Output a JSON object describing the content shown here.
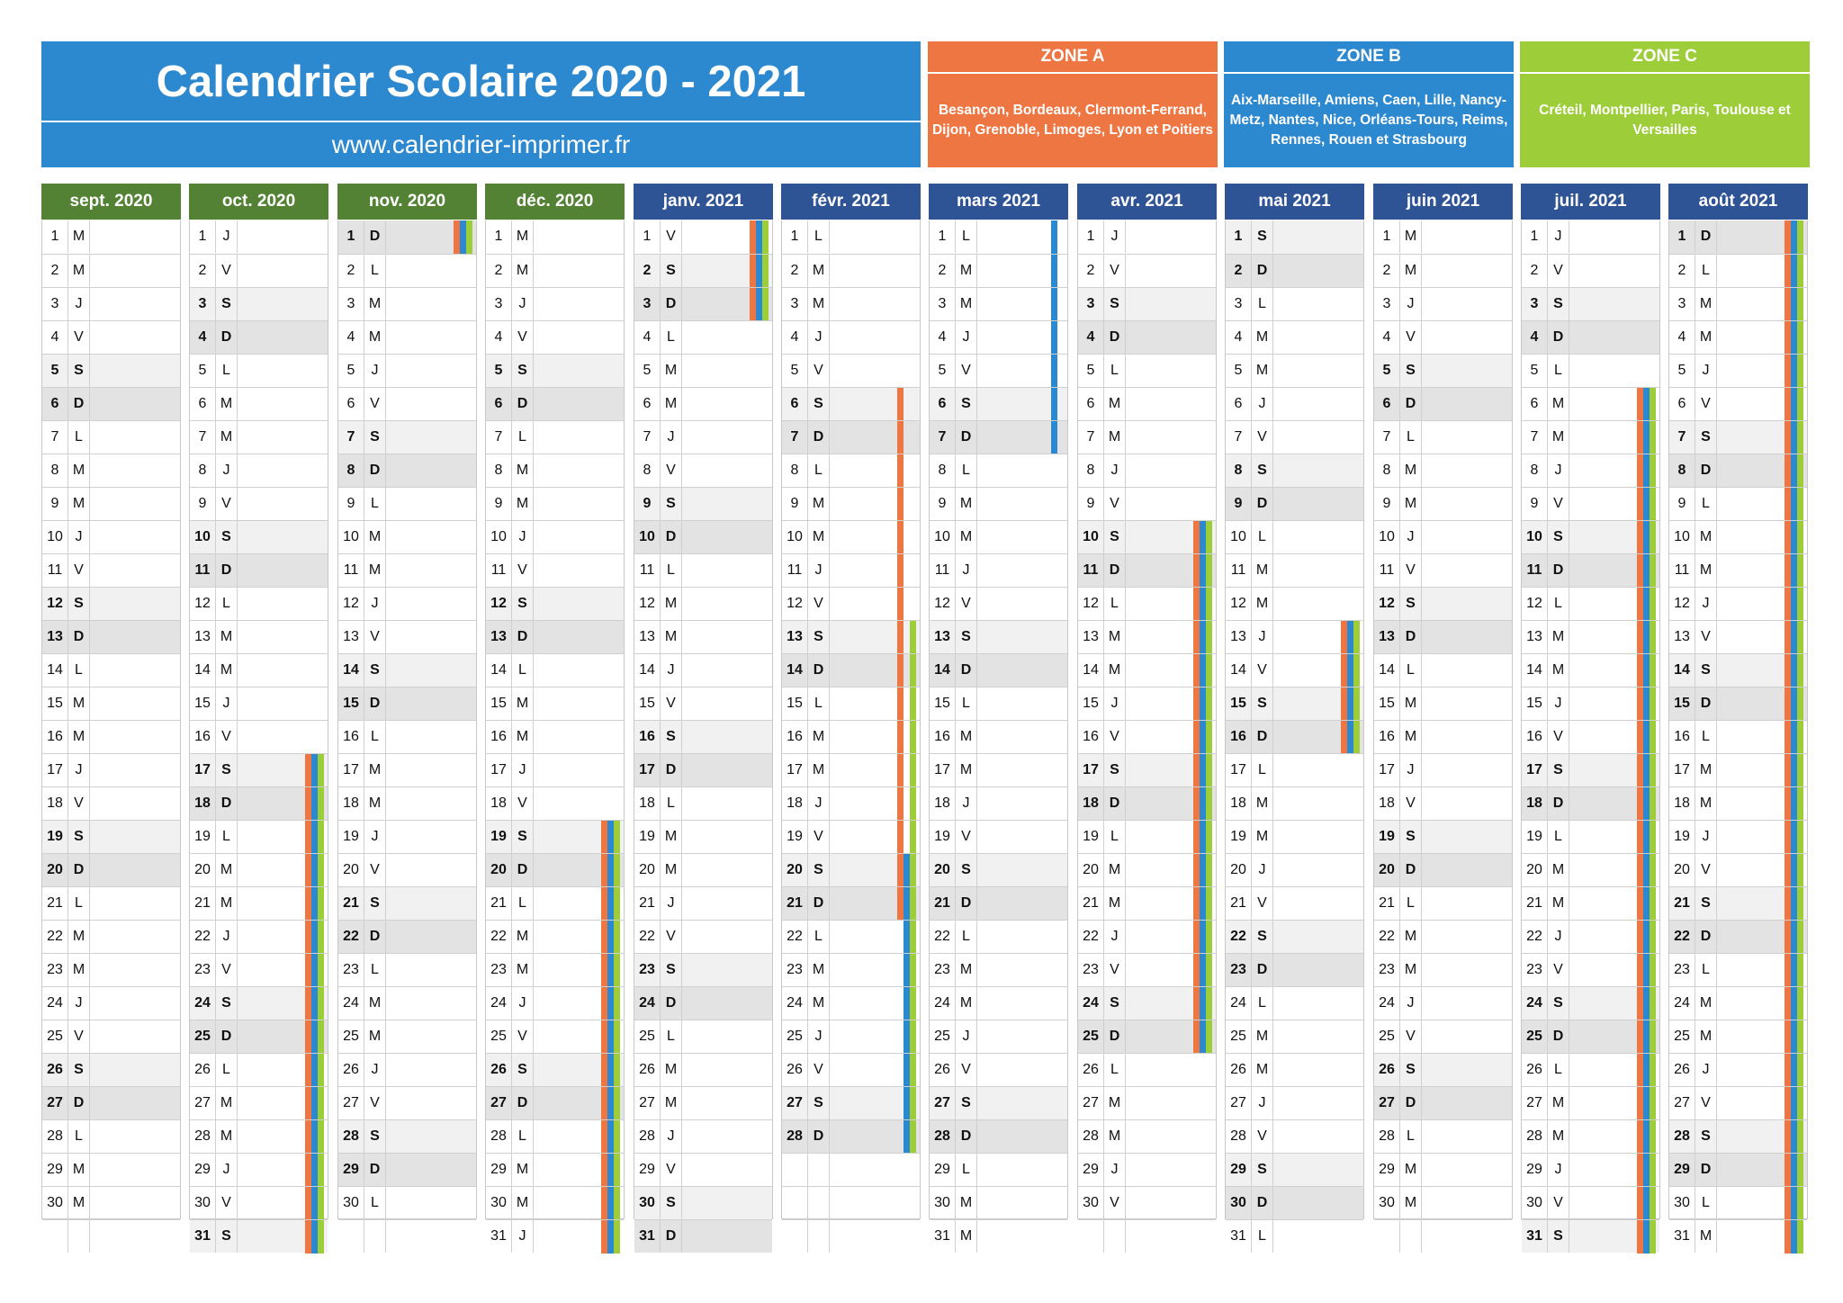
{
  "header": {
    "title": "Calendrier Scolaire 2020 - 2021",
    "url": "www.calendrier-imprimer.fr"
  },
  "zones": [
    {
      "label": "ZONE A",
      "cities": "Besançon, Bordeaux, Clermont-Ferrand, Dijon, Grenoble, Limoges, Lyon et Poitiers",
      "color": "#ee7643"
    },
    {
      "label": "ZONE B",
      "cities": "Aix-Marseille, Amiens, Caen, Lille, Nancy-Metz, Nantes, Nice, Orléans-Tours, Reims, Rennes, Rouen et Strasbourg",
      "color": "#2c88cf"
    },
    {
      "label": "ZONE C",
      "cities": "Créteil, Montpellier, Paris, Toulouse et Versailles",
      "color": "#9ecd3a"
    }
  ],
  "colors": {
    "header_blue": "#2c88cf",
    "zone_a": "#ee7643",
    "zone_b": "#2c88cf",
    "zone_c": "#9ecd3a",
    "month_green": "#548235",
    "month_navy": "#2f5496",
    "saturday_bg": "#f1f1f1",
    "sunday_bg": "#e3e3e3"
  },
  "months": [
    {
      "name": "sept. 2020",
      "header_color": "#548235",
      "days": 30,
      "first_weekday": 1,
      "vacations": {}
    },
    {
      "name": "oct. 2020",
      "header_color": "#548235",
      "days": 31,
      "first_weekday": 3,
      "vacations": {
        "a": [
          [
            17,
            31
          ]
        ],
        "b": [
          [
            17,
            31
          ]
        ],
        "c": [
          [
            17,
            31
          ]
        ]
      }
    },
    {
      "name": "nov. 2020",
      "header_color": "#548235",
      "days": 30,
      "first_weekday": 6,
      "vacations": {
        "a": [
          [
            1,
            1
          ]
        ],
        "b": [
          [
            1,
            1
          ]
        ],
        "c": [
          [
            1,
            1
          ]
        ]
      }
    },
    {
      "name": "déc. 2020",
      "header_color": "#548235",
      "days": 31,
      "first_weekday": 1,
      "vacations": {
        "a": [
          [
            19,
            31
          ]
        ],
        "b": [
          [
            19,
            31
          ]
        ],
        "c": [
          [
            19,
            31
          ]
        ]
      }
    },
    {
      "name": "janv. 2021",
      "header_color": "#2f5496",
      "days": 31,
      "first_weekday": 4,
      "vacations": {
        "a": [
          [
            1,
            3
          ]
        ],
        "b": [
          [
            1,
            3
          ]
        ],
        "c": [
          [
            1,
            3
          ]
        ]
      }
    },
    {
      "name": "févr. 2021",
      "header_color": "#2f5496",
      "days": 28,
      "first_weekday": 0,
      "vacations": {
        "a": [
          [
            6,
            21
          ]
        ],
        "b": [
          [
            20,
            28
          ]
        ],
        "c": [
          [
            13,
            28
          ]
        ]
      }
    },
    {
      "name": "mars 2021",
      "header_color": "#2f5496",
      "days": 31,
      "first_weekday": 0,
      "vacations": {
        "b": [
          [
            1,
            7
          ]
        ]
      }
    },
    {
      "name": "avr. 2021",
      "header_color": "#2f5496",
      "days": 30,
      "first_weekday": 3,
      "vacations": {
        "a": [
          [
            10,
            25
          ]
        ],
        "b": [
          [
            10,
            25
          ]
        ],
        "c": [
          [
            10,
            25
          ]
        ]
      }
    },
    {
      "name": "mai 2021",
      "header_color": "#2f5496",
      "days": 31,
      "first_weekday": 5,
      "vacations": {
        "a": [
          [
            13,
            16
          ]
        ],
        "b": [
          [
            13,
            16
          ]
        ],
        "c": [
          [
            13,
            16
          ]
        ]
      }
    },
    {
      "name": "juin 2021",
      "header_color": "#2f5496",
      "days": 30,
      "first_weekday": 1,
      "vacations": {}
    },
    {
      "name": "juil. 2021",
      "header_color": "#2f5496",
      "days": 31,
      "first_weekday": 3,
      "vacations": {
        "a": [
          [
            6,
            31
          ]
        ],
        "b": [
          [
            6,
            31
          ]
        ],
        "c": [
          [
            6,
            31
          ]
        ]
      }
    },
    {
      "name": "août 2021",
      "header_color": "#2f5496",
      "days": 31,
      "first_weekday": 6,
      "vacations": {
        "a": [
          [
            1,
            31
          ]
        ],
        "b": [
          [
            1,
            31
          ]
        ],
        "c": [
          [
            1,
            31
          ]
        ]
      }
    }
  ],
  "weekday_letters": [
    "L",
    "M",
    "M",
    "J",
    "V",
    "S",
    "D"
  ]
}
